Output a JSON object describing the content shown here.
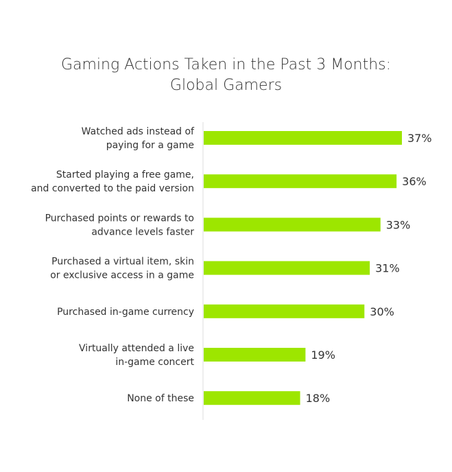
{
  "chart_data": {
    "type": "bar",
    "orientation": "horizontal",
    "title": "Gaming Actions Taken in the Past 3 Months: Global Gamers",
    "title_lines": [
      "Gaming Actions Taken in the Past 3 Months:",
      "Global Gamers"
    ],
    "categories": [
      [
        "Watched ads instead of",
        "paying for a game"
      ],
      [
        "Started playing a free game,",
        "and converted to the paid version"
      ],
      [
        "Purchased points or rewards to",
        "advance levels faster"
      ],
      [
        "Purchased a virtual item, skin",
        "or exclusive access in a game"
      ],
      [
        "Purchased in-game currency"
      ],
      [
        "Virtually attended a live",
        "in-game concert"
      ],
      [
        "None of these"
      ]
    ],
    "values": [
      37,
      36,
      33,
      31,
      30,
      19,
      18
    ],
    "value_labels": [
      "37%",
      "36%",
      "33%",
      "31%",
      "30%",
      "19%",
      "18%"
    ],
    "unit": "%",
    "xlim": [
      0,
      40
    ],
    "grid": false,
    "bar_color": "#9de600"
  }
}
